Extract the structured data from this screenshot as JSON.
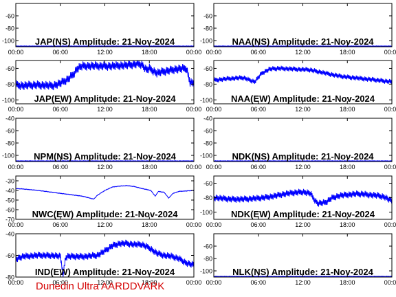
{
  "footer": "Dunedin Ultra AARDDVARK",
  "colors": {
    "trace": "#0000ff",
    "axis": "#000000",
    "footer": "#d40000",
    "background": "#ffffff"
  },
  "chart_data": [
    {
      "type": "line",
      "title": "JAP(NS) Amplitude: 21-Nov-2024",
      "xlim": [
        0,
        24
      ],
      "ylim": [
        -110,
        -40
      ],
      "yticks": [
        -100,
        -80,
        -60
      ],
      "xticks": [
        "00:00",
        "06:00",
        "12:00",
        "18:00",
        "00:00"
      ],
      "series": [
        {
          "x": [
            0,
            24
          ],
          "y": [
            -109,
            -109
          ],
          "band": 1
        }
      ]
    },
    {
      "type": "line",
      "title": "NAA(NS) Amplitude: 21-Nov-2024",
      "xlim": [
        0,
        24
      ],
      "ylim": [
        -110,
        -40
      ],
      "yticks": [
        -100,
        -80,
        -60
      ],
      "xticks": [
        "00:00",
        "06:00",
        "12:00",
        "18:00",
        "00:00"
      ],
      "series": [
        {
          "x": [
            0,
            24
          ],
          "y": [
            -109,
            -109
          ],
          "band": 1
        }
      ]
    },
    {
      "type": "line",
      "title": "JAP(EW) Amplitude: 21-Nov-2024",
      "xlim": [
        0,
        24
      ],
      "ylim": [
        -105,
        -50
      ],
      "yticks": [
        -100,
        -80,
        -60
      ],
      "xticks": [
        "00:00",
        "06:00",
        "12:00",
        "18:00",
        "00:00"
      ],
      "series": [
        {
          "x": [
            0,
            1,
            3,
            5,
            6,
            7,
            7.7,
            8.3,
            9,
            11,
            13,
            15,
            16,
            16.5,
            17,
            17.6,
            18,
            19,
            20.5,
            21.5,
            23,
            23.5,
            24
          ],
          "y": [
            -81,
            -82,
            -81,
            -82,
            -79,
            -74,
            -68,
            -60,
            -57,
            -57,
            -57,
            -56,
            -55,
            -54,
            -55,
            -62,
            -60,
            -66,
            -63,
            -61,
            -60,
            -78,
            -79
          ],
          "band": 12
        }
      ]
    },
    {
      "type": "line",
      "title": "NAA(EW) Amplitude: 21-Nov-2024",
      "xlim": [
        0,
        24
      ],
      "ylim": [
        -105,
        -50
      ],
      "yticks": [
        -100,
        -80,
        -60
      ],
      "xticks": [
        "00:00",
        "06:00",
        "12:00",
        "18:00",
        "00:00"
      ],
      "series": [
        {
          "x": [
            0,
            2,
            4,
            5.5,
            6.5,
            7.5,
            9,
            11,
            13,
            14,
            15,
            16,
            17,
            18,
            19,
            20,
            21,
            22,
            23,
            24
          ],
          "y": [
            -75,
            -73,
            -72,
            -77,
            -66,
            -61,
            -60,
            -61,
            -62,
            -64,
            -66,
            -68,
            -70,
            -71,
            -72,
            -73,
            -74,
            -75,
            -76,
            -77
          ],
          "band": 7
        }
      ]
    },
    {
      "type": "line",
      "title": "NPM(NS) Amplitude: 21-Nov-2024",
      "xlim": [
        0,
        24
      ],
      "ylim": [
        -110,
        -40
      ],
      "yticks": [
        -100,
        -80,
        -60,
        -40
      ],
      "xticks": [
        "00:00",
        "06:00",
        "12:00",
        "18:00",
        "00:00"
      ],
      "series": [
        {
          "x": [
            0,
            24
          ],
          "y": [
            -109,
            -109
          ],
          "band": 1
        }
      ]
    },
    {
      "type": "line",
      "title": "NDK(NS) Amplitude: 21-Nov-2024",
      "xlim": [
        0,
        24
      ],
      "ylim": [
        -110,
        -40
      ],
      "yticks": [
        -100,
        -80,
        -60,
        -40
      ],
      "xticks": [
        "00:00",
        "06:00",
        "12:00",
        "18:00",
        "00:00"
      ],
      "series": [
        {
          "x": [
            0,
            24
          ],
          "y": [
            -109,
            -109
          ],
          "band": 1
        }
      ]
    },
    {
      "type": "line",
      "title": "NWC(EW) Amplitude: 21-Nov-2024",
      "xlim": [
        0,
        24
      ],
      "ylim": [
        -70,
        -25
      ],
      "yticks": [
        -70,
        -60,
        -50,
        -40,
        -30
      ],
      "xticks": [
        "00:00",
        "06:00",
        "12:00",
        "18:00",
        "00:00"
      ],
      "series": [
        {
          "x": [
            0,
            1,
            3,
            5,
            7,
            9,
            10,
            10.5,
            11,
            12,
            13,
            14,
            15,
            16,
            17,
            18.2,
            18.8,
            19.2,
            20,
            20.6,
            21.2,
            22,
            23,
            24
          ],
          "y": [
            -38,
            -38.5,
            -40,
            -42,
            -44,
            -46,
            -48,
            -49,
            -45,
            -40,
            -36.5,
            -35.5,
            -35,
            -36,
            -38,
            -40,
            -46,
            -41,
            -42,
            -48,
            -43,
            -41,
            -40.5,
            -40
          ],
          "band": 0.6
        }
      ]
    },
    {
      "type": "line",
      "title": "NDK(EW) Amplitude: 21-Nov-2024",
      "xlim": [
        0,
        24
      ],
      "ylim": [
        -110,
        -50
      ],
      "yticks": [
        -100,
        -80,
        -60
      ],
      "xticks": [
        "00:00",
        "06:00",
        "12:00",
        "18:00",
        "00:00"
      ],
      "series": [
        {
          "x": [
            0,
            2,
            4,
            6,
            8,
            9.5,
            11,
            12,
            13,
            13.5,
            14,
            15,
            16,
            17,
            18,
            19,
            20,
            21,
            22,
            23,
            24
          ],
          "y": [
            -80,
            -82,
            -82,
            -81,
            -78,
            -75,
            -73,
            -72,
            -74,
            -82,
            -88,
            -87,
            -80,
            -77,
            -76,
            -75,
            -75,
            -76,
            -77,
            -79,
            -85
          ],
          "band": 10
        }
      ]
    },
    {
      "type": "line",
      "title": "IND(EW) Amplitude: 21-Nov-2024",
      "xlim": [
        0,
        24
      ],
      "ylim": [
        -80,
        -40
      ],
      "yticks": [
        -80,
        -60,
        -40
      ],
      "xticks": [
        "00:00",
        "06:00",
        "12:00",
        "18:00",
        "00:00"
      ],
      "series": [
        {
          "x": [
            0,
            1,
            3,
            5,
            6,
            6.4,
            6.7,
            7,
            9,
            11,
            12,
            13,
            14,
            15,
            16,
            17,
            18,
            19,
            20,
            21,
            22,
            23,
            24
          ],
          "y": [
            -63,
            -61,
            -60,
            -60,
            -61,
            -78,
            -62,
            -61,
            -61,
            -60,
            -56,
            -51,
            -49,
            -49,
            -50,
            -50,
            -53,
            -58,
            -60,
            -61,
            -63,
            -67,
            -69
          ],
          "band": 7
        }
      ]
    },
    {
      "type": "line",
      "title": "NLK(NS) Amplitude: 21-Nov-2024",
      "xlim": [
        0,
        24
      ],
      "ylim": [
        -110,
        -40
      ],
      "yticks": [
        -100,
        -80,
        -60
      ],
      "xticks": [
        "00:00",
        "06:00",
        "12:00",
        "18:00",
        "00:00"
      ],
      "series": [
        {
          "x": [
            0,
            24
          ],
          "y": [
            -109,
            -109
          ],
          "band": 1
        }
      ]
    }
  ]
}
